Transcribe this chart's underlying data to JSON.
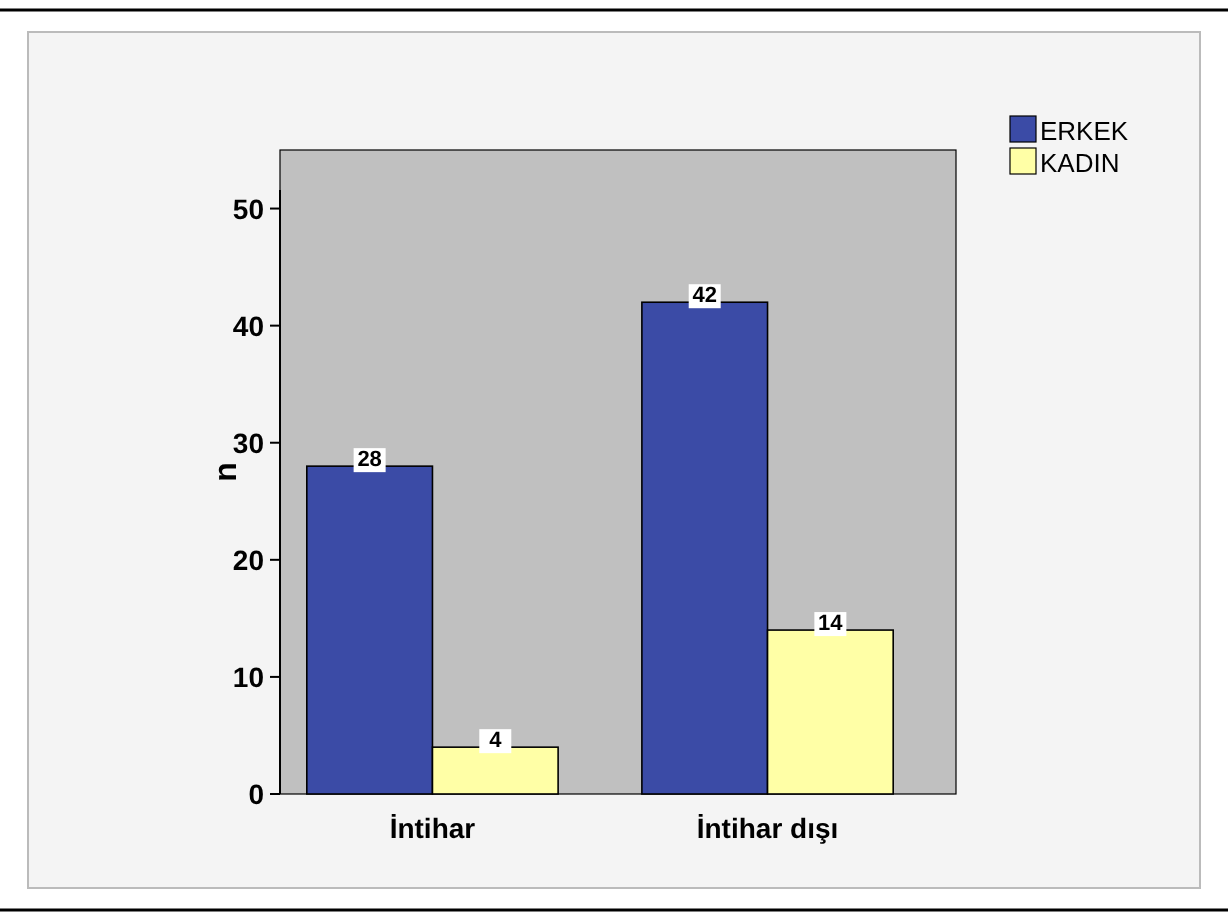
{
  "chart_data": {
    "type": "bar",
    "ylabel": "n",
    "categories": [
      "İntihar",
      "İntihar dışı"
    ],
    "series": [
      {
        "name": "ERKEK",
        "color": "#3b4ba6",
        "values": [
          28,
          42
        ]
      },
      {
        "name": "KADIN",
        "color": "#ffffa6",
        "values": [
          4,
          14
        ]
      }
    ],
    "ylim": [
      0,
      55
    ],
    "yticks": [
      0,
      10,
      20,
      30,
      40,
      50
    ],
    "data_labels": true,
    "legend": "top right",
    "grid": false
  }
}
